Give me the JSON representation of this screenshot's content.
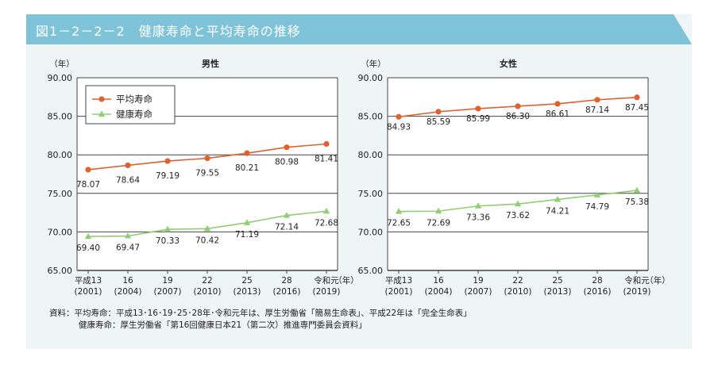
{
  "header": {
    "title": "図1－2－2－2　健康寿命と平均寿命の推移"
  },
  "colors": {
    "header_bg": "#7fc3d8",
    "panel_bg": "#eef6f5",
    "avg_line": "#e0602e",
    "healthy_line": "#8fcf72",
    "grid": "#444444"
  },
  "legend": {
    "avg": "平均寿命",
    "healthy": "健康寿命"
  },
  "source": {
    "line1_label": "資料：平均寿命：",
    "line1_text": "平成13･16･19･25･28年･令和元年は、厚生労働省「簡易生命表」、平成22年は「完全生命表」",
    "line2_label": "健康寿命：",
    "line2_text": "厚生労働省「第16回健康日本21（第二次）推進専門委員会資料」"
  },
  "chart_data": [
    {
      "type": "line",
      "title": "男性",
      "ylabel": "（年）",
      "xlabel": "（年）",
      "ylim": [
        65,
        90
      ],
      "yticks": [
        "90.00",
        "85.00",
        "80.00",
        "75.00",
        "70.00",
        "65.00"
      ],
      "categories": [
        "平成13",
        "16",
        "19",
        "22",
        "25",
        "28",
        "令和元"
      ],
      "categories_sub": [
        "(2001)",
        "(2004)",
        "(2007)",
        "(2010)",
        "(2013)",
        "(2016)",
        "(2019)"
      ],
      "series": [
        {
          "name": "平均寿命",
          "values": [
            78.07,
            78.64,
            79.19,
            79.55,
            80.21,
            80.98,
            81.41
          ],
          "labels": [
            "78.07",
            "78.64",
            "79.19",
            "79.55",
            "80.21",
            "80.98",
            "81.41"
          ]
        },
        {
          "name": "健康寿命",
          "values": [
            69.4,
            69.47,
            70.33,
            70.42,
            71.19,
            72.14,
            72.68
          ],
          "labels": [
            "69.40",
            "69.47",
            "70.33",
            "70.42",
            "71.19",
            "72.14",
            "72.68"
          ]
        }
      ],
      "legend": "top-left"
    },
    {
      "type": "line",
      "title": "女性",
      "ylabel": "（年）",
      "xlabel": "（年）",
      "ylim": [
        65,
        90
      ],
      "yticks": [
        "90.00",
        "85.00",
        "80.00",
        "75.00",
        "70.00",
        "65.00"
      ],
      "categories": [
        "平成13",
        "16",
        "19",
        "22",
        "25",
        "28",
        "令和元"
      ],
      "categories_sub": [
        "(2001)",
        "(2004)",
        "(2007)",
        "(2010)",
        "(2013)",
        "(2016)",
        "(2019)"
      ],
      "series": [
        {
          "name": "平均寿命",
          "values": [
            84.93,
            85.59,
            85.99,
            86.3,
            86.61,
            87.14,
            87.45
          ],
          "labels": [
            "84.93",
            "85.59",
            "85.99",
            "86.30",
            "86.61",
            "87.14",
            "87.45"
          ]
        },
        {
          "name": "健康寿命",
          "values": [
            72.65,
            72.69,
            73.36,
            73.62,
            74.21,
            74.79,
            75.38
          ],
          "labels": [
            "72.65",
            "72.69",
            "73.36",
            "73.62",
            "74.21",
            "74.79",
            "75.38"
          ]
        }
      ]
    }
  ]
}
